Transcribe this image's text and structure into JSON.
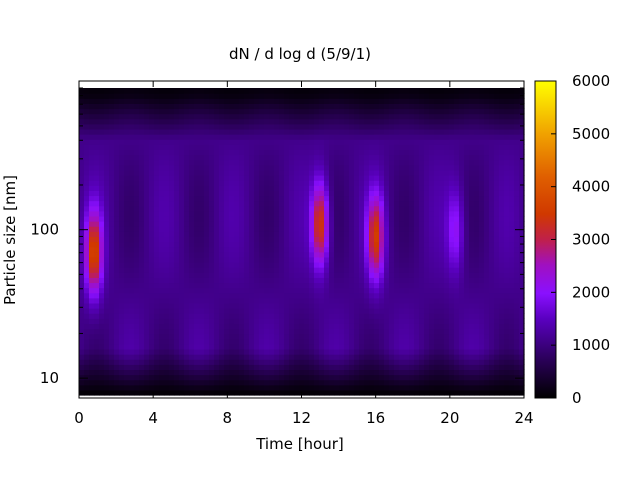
{
  "chart_data": {
    "type": "heatmap",
    "title": "dN / d log d (5/9/1)",
    "xlabel": "Time [hour]",
    "ylabel": "Particle size [nm]",
    "xlim": [
      0,
      24
    ],
    "ylim_nm": [
      7.7,
      900
    ],
    "y_scale": "log",
    "x_ticks": [
      0,
      4,
      8,
      12,
      16,
      20,
      24
    ],
    "x_tick_labels": [
      "0",
      "4",
      "8",
      "12",
      "16",
      "20",
      "24"
    ],
    "y_ticks": [
      10,
      100
    ],
    "y_tick_labels": [
      "10",
      "100"
    ],
    "colorbar": {
      "range": [
        0,
        6000
      ],
      "ticks": [
        0,
        1000,
        2000,
        3000,
        4000,
        5000,
        6000
      ],
      "tick_labels": [
        "0",
        "1000",
        "2000",
        "3000",
        "4000",
        "5000",
        "6000"
      ],
      "palette": "black-purple-red-orange-yellow"
    },
    "background_value": 1100,
    "hotspots": [
      {
        "time_h": 0.8,
        "size_nm": 70,
        "value": 3600
      },
      {
        "time_h": 13.0,
        "size_nm": 110,
        "value": 3500
      },
      {
        "time_h": 16.0,
        "size_nm": 90,
        "value": 3400
      },
      {
        "time_h": 20.3,
        "size_nm": 100,
        "value": 2100
      }
    ]
  }
}
